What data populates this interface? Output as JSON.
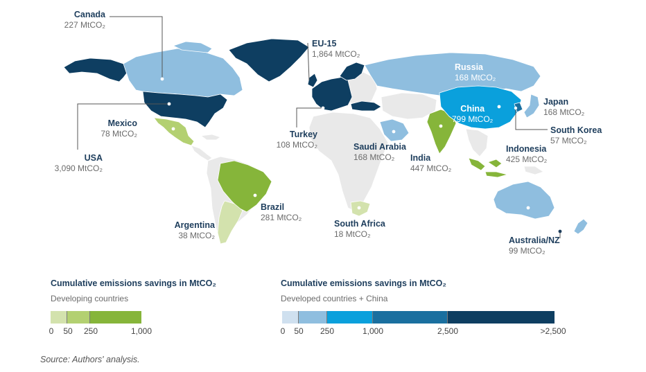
{
  "countries": {
    "canada": {
      "name": "Canada",
      "value": "227 MtCO₂"
    },
    "eu15": {
      "name": "EU-15",
      "value": "1,864 MtCO₂"
    },
    "russia": {
      "name": "Russia",
      "value": "168 MtCO₂"
    },
    "japan": {
      "name": "Japan",
      "value": "168 MtCO₂"
    },
    "china": {
      "name": "China",
      "value": "799 MtCO₂"
    },
    "south_korea": {
      "name": "South Korea",
      "value": "57 MtCO₂"
    },
    "mexico": {
      "name": "Mexico",
      "value": "78 MtCO₂"
    },
    "usa": {
      "name": "USA",
      "value": "3,090 MtCO₂"
    },
    "turkey": {
      "name": "Turkey",
      "value": "108 MtCO₂"
    },
    "saudi_arabia": {
      "name": "Saudi Arabia",
      "value": "168 MtCO₂"
    },
    "india": {
      "name": "India",
      "value": "447 MtCO₂"
    },
    "indonesia": {
      "name": "Indonesia",
      "value": "425 MtCO₂"
    },
    "brazil": {
      "name": "Brazil",
      "value": "281 MtCO₂"
    },
    "argentina": {
      "name": "Argentina",
      "value": "38 MtCO₂"
    },
    "south_africa": {
      "name": "South Africa",
      "value": "18 MtCO₂"
    },
    "australia_nz": {
      "name": "Australia/NZ",
      "value": "99 MtCO₂"
    }
  },
  "legend_developing": {
    "title": "Cumulative emissions savings in MtCO₂",
    "subtitle": "Developing countries",
    "ticks": [
      "0",
      "50",
      "250",
      "1,000"
    ],
    "colors": [
      "#d3e2ad",
      "#b3d071",
      "#86b53a"
    ]
  },
  "legend_developed": {
    "title": "Cumulative emissions savings in MtCO₂",
    "subtitle": "Developed countries + China",
    "ticks": [
      "0",
      "50",
      "250",
      "1,000",
      "2,500",
      ">2,500"
    ],
    "colors": [
      "#cfe0ef",
      "#8fbedf",
      "#0aa0dc",
      "#1a6f9f",
      "#0e3e61"
    ]
  },
  "colors": {
    "no_data": "#e9e9e9",
    "label_name": "#1d3d5c",
    "label_value": "#6b6b6b"
  },
  "source": "Source: Authors' analysis."
}
